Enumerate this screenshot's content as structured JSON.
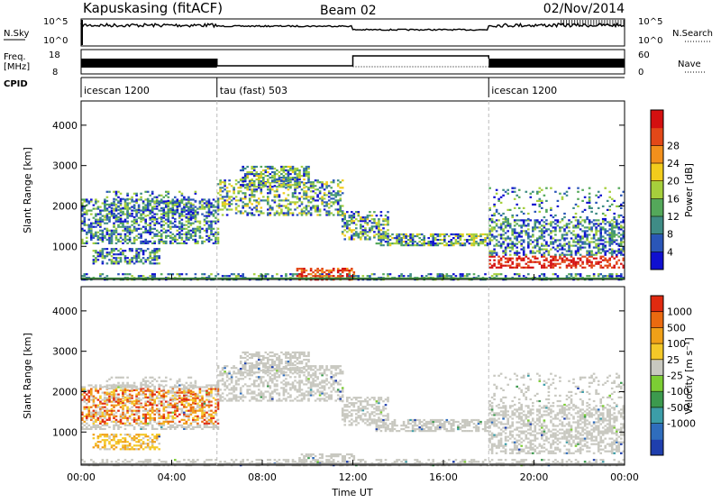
{
  "header": {
    "title": "Kapuskasing (fitACF)",
    "beam": "Beam 02",
    "date": "02/Nov/2014"
  },
  "panels": {
    "nsky": {
      "label": "N.Sky",
      "left_ticks": [
        "10^5",
        "10^0"
      ],
      "right_ticks": [
        "10^5",
        "10^0"
      ],
      "right_label": "N.Search"
    },
    "freq": {
      "label_line1": "Freq.",
      "label_line2": "[MHz]",
      "left_ticks": [
        "18",
        "8"
      ],
      "right_ticks": [
        "60",
        "0"
      ],
      "right_label": "Nave"
    },
    "cpid": {
      "label": "CPID",
      "segments": [
        {
          "label": "icescan 1200",
          "start": 0,
          "end": 6
        },
        {
          "label": "tau (fast) 503",
          "start": 6,
          "end": 18
        },
        {
          "label": "icescan 1200",
          "start": 18,
          "end": 24
        }
      ]
    }
  },
  "chart_data": [
    {
      "type": "heatmap",
      "name_panel": "power",
      "ylabel": "Slant Range [km]",
      "ylim": [
        180,
        4600
      ],
      "yticks": [
        1000,
        2000,
        3000,
        4000
      ],
      "xlim": [
        0,
        24
      ],
      "colorbar": {
        "label": "Power [dB]",
        "ticks": [
          "4",
          "8",
          "12",
          "16",
          "20",
          "24",
          "28"
        ],
        "colors": [
          "#1010d0",
          "#2a56b8",
          "#3f8c86",
          "#54a85a",
          "#a6cf3c",
          "#f2cc1c",
          "#f2901c",
          "#e24818",
          "#d41010"
        ]
      }
    },
    {
      "type": "heatmap",
      "name_panel": "velocity",
      "ylabel": "Slant Range [km]",
      "ylim": [
        180,
        4600
      ],
      "yticks": [
        1000,
        2000,
        3000,
        4000
      ],
      "xlim": [
        0,
        24
      ],
      "xlabel": "Time UT",
      "xticks": [
        "00:00",
        "04:00",
        "08:00",
        "12:00",
        "16:00",
        "20:00",
        "00:00"
      ],
      "colorbar": {
        "label": "Velocity [m s⁻¹]",
        "ticks": [
          "1000",
          "500",
          "100",
          "25",
          "-25",
          "-100",
          "-500",
          "-1000"
        ],
        "colors": [
          "#1f3fae",
          "#2f6dbd",
          "#3c9da8",
          "#3c9a4e",
          "#7ccd34",
          "#c8c8c0",
          "#f4c828",
          "#f0a018",
          "#ea6a10",
          "#e02a10"
        ]
      }
    }
  ]
}
